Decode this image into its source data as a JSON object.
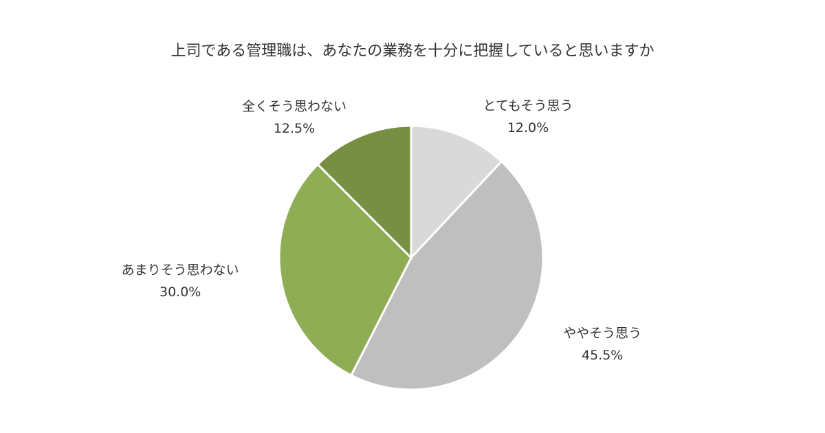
{
  "chart_data": {
    "type": "pie",
    "title": "上司である管理職は、あなたの業務を十分に把握していると思いますか",
    "categories": [
      "とてもそう思う",
      "ややそう思う",
      "あまりそう思わない",
      "全くそう思わない"
    ],
    "values": [
      12,
      45.5,
      30,
      12.5
    ],
    "value_labels": [
      "12.0%",
      "45.5%",
      "30.0%",
      "12.5%"
    ],
    "colors": [
      "#d9d9d9",
      "#bfbfbf",
      "#8fad54",
      "#778f42"
    ]
  }
}
